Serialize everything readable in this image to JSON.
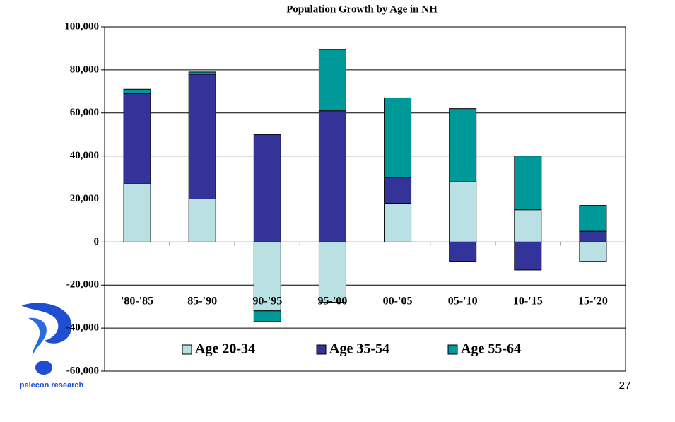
{
  "chart_data": {
    "type": "bar",
    "stacked": true,
    "title": "Population Growth by Age in NH",
    "categories": [
      "'80-'85",
      "85-'90",
      "90-'95",
      "95-'00",
      "00-'05",
      "05-'10",
      "10-'15",
      "15-'20"
    ],
    "series": [
      {
        "name": "Age 20-34",
        "color": "#b9e0e3",
        "values": [
          27000,
          20000,
          -32000,
          -28000,
          18000,
          28000,
          15000,
          -9000
        ]
      },
      {
        "name": "Age 35-54",
        "color": "#333399",
        "values": [
          42000,
          58000,
          50000,
          61000,
          12000,
          -9000,
          -13000,
          5000
        ]
      },
      {
        "name": "Age 55-64",
        "color": "#009999",
        "values": [
          2000,
          1000,
          -5000,
          28500,
          37000,
          34000,
          25000,
          12000
        ]
      }
    ],
    "ylim": [
      -60000,
      100000
    ],
    "yticks": [
      {
        "value": -60000,
        "label": "-60,000"
      },
      {
        "value": -40000,
        "label": "-40,000"
      },
      {
        "value": -20000,
        "label": "-20,000"
      },
      0,
      {
        "value": 20000,
        "label": "20,000"
      },
      {
        "value": 40000,
        "label": "40,000"
      },
      {
        "value": 60000,
        "label": "60,000"
      },
      {
        "value": 80000,
        "label": "80,000"
      },
      {
        "value": 100000,
        "label": "100,000"
      }
    ],
    "grid": true
  },
  "footer": {
    "logo_text": "pelecon research",
    "page_number": "27"
  }
}
